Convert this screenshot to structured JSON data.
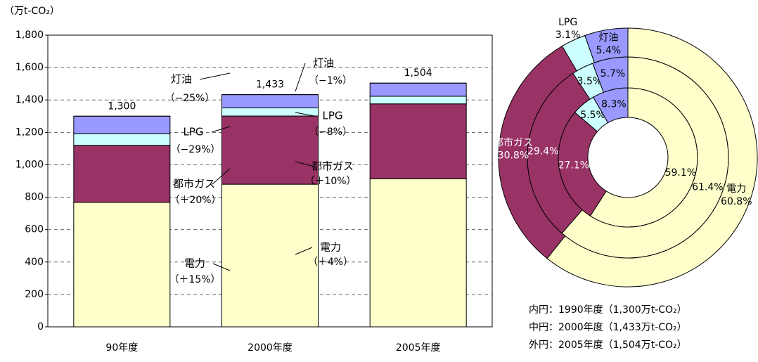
{
  "chart_data": [
    {
      "type": "stacked_bar",
      "y_label": "（万t-CO₂）",
      "categories": [
        "90年度",
        "2000年度",
        "2005年度"
      ],
      "series": [
        {
          "name": "電力",
          "color": "#ffffcc",
          "values": [
            768,
            880,
            914
          ]
        },
        {
          "name": "都市ガス",
          "color": "#993366",
          "values": [
            352,
            421,
            462
          ]
        },
        {
          "name": "LPG",
          "color": "#ccffff",
          "values": [
            72,
            50,
            47
          ]
        },
        {
          "name": "灯油",
          "color": "#9999ff",
          "values": [
            108,
            82,
            81
          ]
        }
      ],
      "totals": [
        1300,
        1433,
        1504
      ],
      "total_labels": [
        "1,300",
        "1,433",
        "1,504"
      ],
      "ylim": [
        0,
        1800
      ],
      "yticks": [
        0,
        200,
        400,
        600,
        800,
        {
          "value": 1000,
          "label": "1,000"
        },
        {
          "value": 1200,
          "label": "1,200"
        },
        {
          "value": 1400,
          "label": "1,400"
        },
        {
          "value": 1600,
          "label": "1,600"
        },
        {
          "value": 1800,
          "label": "1,800"
        }
      ],
      "grid": true,
      "annotations": [
        {
          "text": "灯油",
          "note": "（−25%）"
        },
        {
          "text": "LPG",
          "note": "（−29%）"
        },
        {
          "text": "都市ガス",
          "note": "（＋20%）"
        },
        {
          "text": "電力",
          "note": "（＋15%）"
        },
        {
          "text": "灯油",
          "note": "（−1%）"
        },
        {
          "text": "LPG",
          "note": "（−8%）"
        },
        {
          "text": "都市ガス",
          "note": "（＋10%）"
        },
        {
          "text": "電力",
          "note": "（＋4%）"
        }
      ]
    },
    {
      "type": "donut",
      "categories": [
        "電力",
        "都市ガス",
        "LPG",
        "灯油"
      ],
      "colors": [
        "#ffffcc",
        "#993366",
        "#ccffff",
        "#9999ff"
      ],
      "rings": [
        {
          "name": "内円：1990年度（1,300万t-CO₂）",
          "values": [
            59.1,
            27.1,
            5.5,
            8.3
          ],
          "value_labels": [
            "59.1%",
            "27.1%",
            "5.5%",
            "8.3%"
          ]
        },
        {
          "name": "中円：2000年度（1,433万t-CO₂）",
          "values": [
            61.4,
            29.4,
            3.5,
            5.7
          ],
          "value_labels": [
            "61.4%",
            "29.4%",
            "3.5%",
            "5.7%"
          ]
        },
        {
          "name": "外円：2005年度（1,504万t-CO₂）",
          "values": [
            60.8,
            30.8,
            3.1,
            5.4
          ],
          "value_labels": [
            "60.8%",
            "30.8%",
            "3.1%",
            "5.4%"
          ]
        }
      ]
    }
  ]
}
